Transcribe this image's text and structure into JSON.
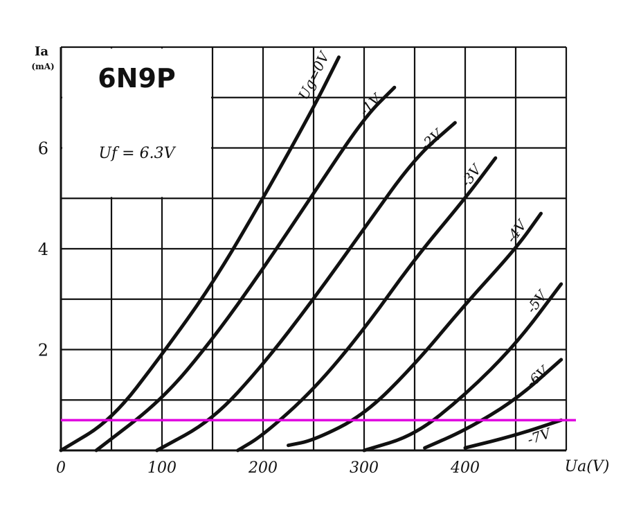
{
  "chart_data": {
    "type": "line",
    "title": "6N9P",
    "subtitle": "Uf = 6.3V",
    "xlabel": "Ua(V)",
    "ylabel": "Ia",
    "ylabel_unit": "(mA)",
    "xlim": [
      0,
      500
    ],
    "ylim": [
      0,
      8
    ],
    "grid": true,
    "x_ticks": [
      0,
      100,
      200,
      300,
      400
    ],
    "x_tick_labels": [
      "0",
      "100",
      "200",
      "300",
      "400"
    ],
    "y_ticks": [
      2,
      4,
      6
    ],
    "y_tick_labels": [
      "2",
      "4",
      "6"
    ],
    "series": [
      {
        "name": "Ug=0V",
        "points": [
          [
            0,
            0
          ],
          [
            50,
            0.6
          ],
          [
            100,
            1.9
          ],
          [
            150,
            3.3
          ],
          [
            200,
            5.0
          ],
          [
            250,
            6.8
          ],
          [
            275,
            7.8
          ]
        ]
      },
      {
        "name": "-1V",
        "points": [
          [
            35,
            0
          ],
          [
            100,
            1.0
          ],
          [
            150,
            2.2
          ],
          [
            200,
            3.6
          ],
          [
            250,
            5.1
          ],
          [
            300,
            6.6
          ],
          [
            330,
            7.2
          ]
        ]
      },
      {
        "name": "-2V",
        "points": [
          [
            95,
            0
          ],
          [
            150,
            0.6
          ],
          [
            200,
            1.7
          ],
          [
            250,
            3.0
          ],
          [
            300,
            4.4
          ],
          [
            350,
            5.8
          ],
          [
            390,
            6.5
          ]
        ]
      },
      {
        "name": "-3V",
        "points": [
          [
            175,
            0
          ],
          [
            200,
            0.3
          ],
          [
            250,
            1.2
          ],
          [
            300,
            2.4
          ],
          [
            350,
            3.8
          ],
          [
            400,
            5.0
          ],
          [
            430,
            5.8
          ]
        ]
      },
      {
        "name": "-4V",
        "points": [
          [
            225,
            0.1
          ],
          [
            250,
            0.2
          ],
          [
            300,
            0.7
          ],
          [
            350,
            1.7
          ],
          [
            400,
            2.9
          ],
          [
            450,
            4.0
          ],
          [
            475,
            4.7
          ]
        ]
      },
      {
        "name": "-5V",
        "points": [
          [
            300,
            0
          ],
          [
            350,
            0.3
          ],
          [
            400,
            1.1
          ],
          [
            450,
            2.1
          ],
          [
            495,
            3.3
          ]
        ]
      },
      {
        "name": "-6V",
        "points": [
          [
            360,
            0.05
          ],
          [
            400,
            0.4
          ],
          [
            450,
            1.0
          ],
          [
            495,
            1.8
          ]
        ]
      },
      {
        "name": "-7V",
        "points": [
          [
            400,
            0.05
          ],
          [
            450,
            0.3
          ],
          [
            495,
            0.6
          ]
        ]
      }
    ],
    "reference_line": {
      "y": 0.6,
      "color": "#e000e0"
    }
  }
}
